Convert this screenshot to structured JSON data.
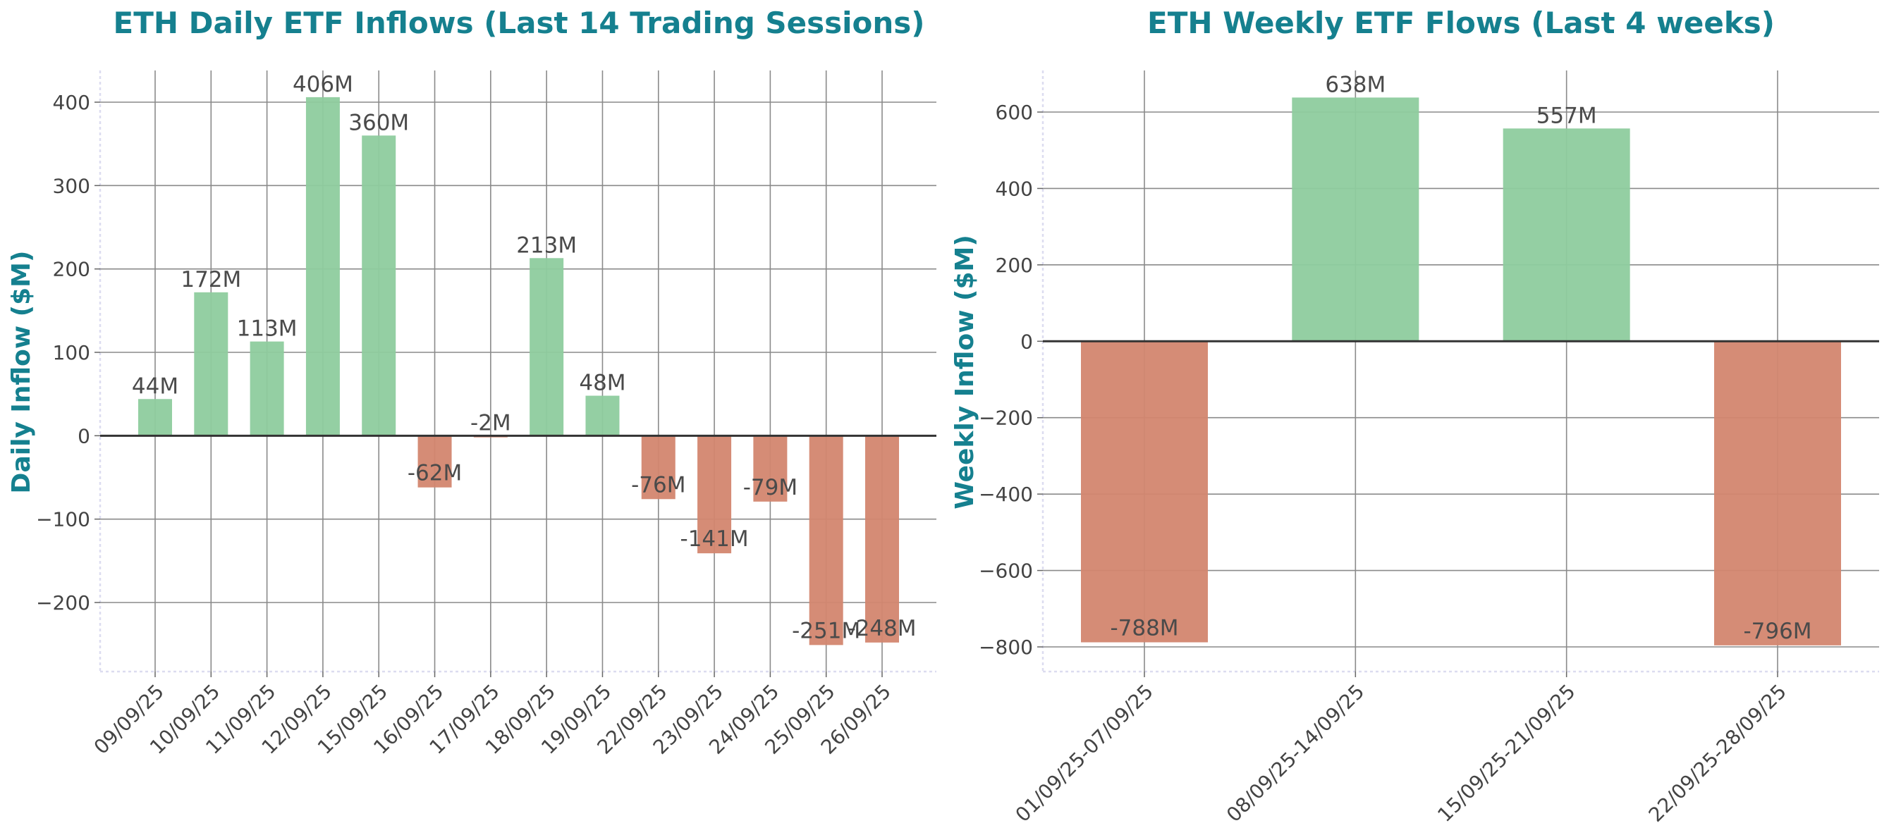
{
  "chart_data": [
    {
      "type": "bar",
      "title": "ETH Daily ETF Inflows (Last 14 Trading Sessions)",
      "xlabel": "",
      "ylabel": "Daily Inflow ($M)",
      "categories": [
        "09/09/25",
        "10/09/25",
        "11/09/25",
        "12/09/25",
        "15/09/25",
        "16/09/25",
        "17/09/25",
        "18/09/25",
        "19/09/25",
        "22/09/25",
        "23/09/25",
        "24/09/25",
        "25/09/25",
        "26/09/25"
      ],
      "values": [
        44,
        172,
        113,
        406,
        360,
        -62,
        -2,
        213,
        48,
        -76,
        -141,
        -79,
        -251,
        -248
      ],
      "data_labels": [
        "44M",
        "172M",
        "113M",
        "406M",
        "360M",
        "-62M",
        "-2M",
        "213M",
        "48M",
        "-76M",
        "-141M",
        "-79M",
        "-251M",
        "-248M"
      ],
      "yticks": [
        -200,
        -100,
        0,
        100,
        200,
        300,
        400
      ],
      "ylim": [
        -285,
        440
      ],
      "grid": true,
      "positive_color": "#8ecc9e",
      "negative_color": "#d3866f"
    },
    {
      "type": "bar",
      "title": "ETH Weekly ETF Flows (Last 4 weeks)",
      "xlabel": "",
      "ylabel": "Weekly Inflow ($M)",
      "categories": [
        "01/09/25-07/09/25",
        "08/09/25-14/09/25",
        "15/09/25-21/09/25",
        "22/09/25-28/09/25"
      ],
      "values": [
        -788,
        638,
        557,
        -796
      ],
      "data_labels": [
        "-788M",
        "638M",
        "557M",
        "-796M"
      ],
      "yticks": [
        -800,
        -600,
        -400,
        -200,
        0,
        200,
        400,
        600
      ],
      "ylim": [
        -860,
        710
      ],
      "grid": true,
      "positive_color": "#8ecc9e",
      "negative_color": "#d3866f"
    }
  ]
}
